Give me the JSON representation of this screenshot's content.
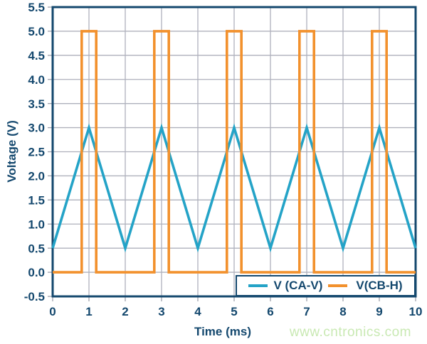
{
  "figure": {
    "watermark": "www.cntronics.com"
  },
  "colors": {
    "navy": "#14486E",
    "grid": "#AFB1BC",
    "tick_mark": "#9EA0AC",
    "background": "#FFFFFF",
    "watermark_green": "#C9E9B3",
    "triangle_cyan": "#24A3C7",
    "pulse_orange": "#F2912D"
  },
  "chart_data": {
    "type": "line",
    "title": "",
    "xlabel": "Time (ms)",
    "ylabel": "Voltage (V)",
    "xlim": [
      0,
      10
    ],
    "ylim": [
      -0.5,
      5.5
    ],
    "grid": true,
    "legend_position": "inside-bottom-right",
    "x_ticks": [
      0,
      1,
      2,
      3,
      4,
      5,
      6,
      7,
      8,
      9,
      10
    ],
    "x_tick_labels": [
      "0",
      "1",
      "2",
      "3",
      "4",
      "5",
      "6",
      "7",
      "8",
      "9",
      "10"
    ],
    "y_ticks": [
      -0.5,
      0.0,
      0.5,
      1.0,
      1.5,
      2.0,
      2.5,
      3.0,
      3.5,
      4.0,
      4.5,
      5.0,
      5.5
    ],
    "y_tick_labels": [
      "-0.5",
      "0.0",
      "0.5",
      "1.0",
      "1.5",
      "2.0",
      "2.5",
      "3.0",
      "3.5",
      "4.0",
      "4.5",
      "5.0",
      "5.5"
    ],
    "series": [
      {
        "name": "V (CA-V)",
        "color": "#24A3C7",
        "shape": "triangle-wave",
        "points": [
          [
            0,
            0.5
          ],
          [
            1,
            3.0
          ],
          [
            2,
            0.5
          ],
          [
            3,
            3.0
          ],
          [
            4,
            0.5
          ],
          [
            5,
            3.0
          ],
          [
            6,
            0.5
          ],
          [
            7,
            3.0
          ],
          [
            8,
            0.5
          ],
          [
            9,
            3.0
          ],
          [
            10,
            0.5
          ]
        ]
      },
      {
        "name": "V(CB-H)",
        "color": "#F2912D",
        "shape": "pulse-train",
        "points": [
          [
            0,
            0
          ],
          [
            0.8,
            0
          ],
          [
            0.8,
            5
          ],
          [
            1.2,
            5
          ],
          [
            1.2,
            0
          ],
          [
            2.8,
            0
          ],
          [
            2.8,
            5
          ],
          [
            3.2,
            5
          ],
          [
            3.2,
            0
          ],
          [
            4.8,
            0
          ],
          [
            4.8,
            5
          ],
          [
            5.2,
            5
          ],
          [
            5.2,
            0
          ],
          [
            6.8,
            0
          ],
          [
            6.8,
            5
          ],
          [
            7.2,
            5
          ],
          [
            7.2,
            0
          ],
          [
            8.8,
            0
          ],
          [
            8.8,
            5
          ],
          [
            9.2,
            5
          ],
          [
            9.2,
            0
          ],
          [
            10,
            0
          ]
        ]
      }
    ]
  }
}
